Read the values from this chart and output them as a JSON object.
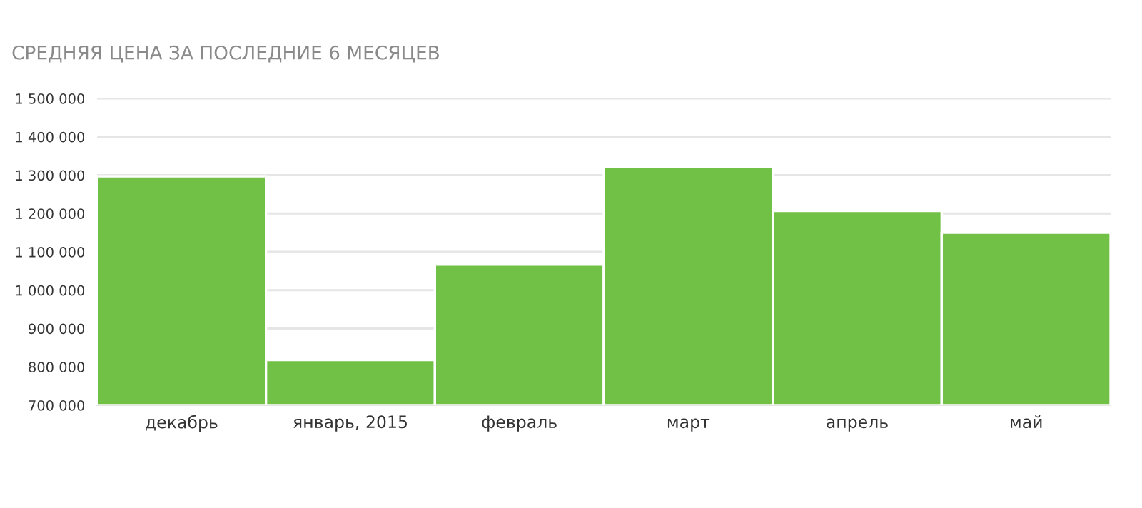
{
  "chart_data": {
    "type": "bar",
    "title": "СРЕДНЯЯ ЦЕНА ЗА ПОСЛЕДНИЕ 6 МЕСЯЦЕВ",
    "categories": [
      "декабрь",
      "январь, 2015",
      "февраль",
      "март",
      "апрель",
      "май"
    ],
    "values": [
      1297000,
      818000,
      1067000,
      1321000,
      1207000,
      1150000
    ],
    "color": "#72c147",
    "ylim": [
      700000,
      1500000
    ],
    "yticks": [
      {
        "value": 700000,
        "label": "700 000"
      },
      {
        "value": 800000,
        "label": "800 000"
      },
      {
        "value": 900000,
        "label": "900 000"
      },
      {
        "value": 1000000,
        "label": "1 000 000"
      },
      {
        "value": 1100000,
        "label": "1 100 000"
      },
      {
        "value": 1200000,
        "label": "1 200 000"
      },
      {
        "value": 1300000,
        "label": "1 300 000"
      },
      {
        "value": 1400000,
        "label": "1 400 000"
      },
      {
        "value": 1500000,
        "label": "1 500 000"
      }
    ],
    "grid": "y"
  }
}
